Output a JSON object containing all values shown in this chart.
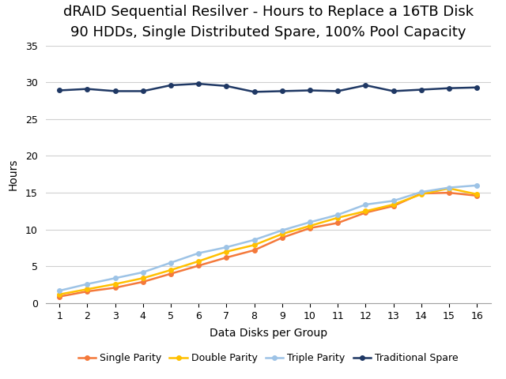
{
  "title": "dRAID Sequential Resilver - Hours to Replace a 16TB Disk",
  "subtitle": "90 HDDs, Single Distributed Spare, 100% Pool Capacity",
  "xlabel": "Data Disks per Group",
  "ylabel": "Hours",
  "x": [
    1,
    2,
    3,
    4,
    5,
    6,
    7,
    8,
    9,
    10,
    11,
    12,
    13,
    14,
    15,
    16
  ],
  "single_parity": [
    0.9,
    1.6,
    2.1,
    2.9,
    4.0,
    5.1,
    6.2,
    7.2,
    8.9,
    10.2,
    10.9,
    12.3,
    13.2,
    14.9,
    15.0,
    14.6
  ],
  "double_parity": [
    1.2,
    1.9,
    2.6,
    3.4,
    4.5,
    5.7,
    7.0,
    7.9,
    9.4,
    10.5,
    11.6,
    12.5,
    13.4,
    14.8,
    15.6,
    14.8
  ],
  "triple_parity": [
    1.7,
    2.6,
    3.4,
    4.2,
    5.5,
    6.8,
    7.6,
    8.6,
    9.9,
    11.0,
    12.0,
    13.4,
    13.9,
    15.1,
    15.7,
    16.0
  ],
  "traditional_spare": [
    28.9,
    29.1,
    28.8,
    28.8,
    29.6,
    29.8,
    29.5,
    28.7,
    28.8,
    28.9,
    28.8,
    29.6,
    28.8,
    29.0,
    29.2,
    29.3
  ],
  "color_single": "#F4793B",
  "color_double": "#FFC000",
  "color_triple": "#9DC3E6",
  "color_traditional": "#1F3864",
  "ylim": [
    0,
    35
  ],
  "yticks": [
    0,
    5,
    10,
    15,
    20,
    25,
    30,
    35
  ],
  "xlim": [
    0.5,
    16.5
  ],
  "legend_labels": [
    "Single Parity",
    "Double Parity",
    "Triple Parity",
    "Traditional Spare"
  ],
  "title_fontsize": 13,
  "subtitle_fontsize": 10,
  "axis_label_fontsize": 10,
  "tick_fontsize": 9,
  "legend_fontsize": 9,
  "marker": "o",
  "markersize": 4,
  "linewidth": 1.8
}
